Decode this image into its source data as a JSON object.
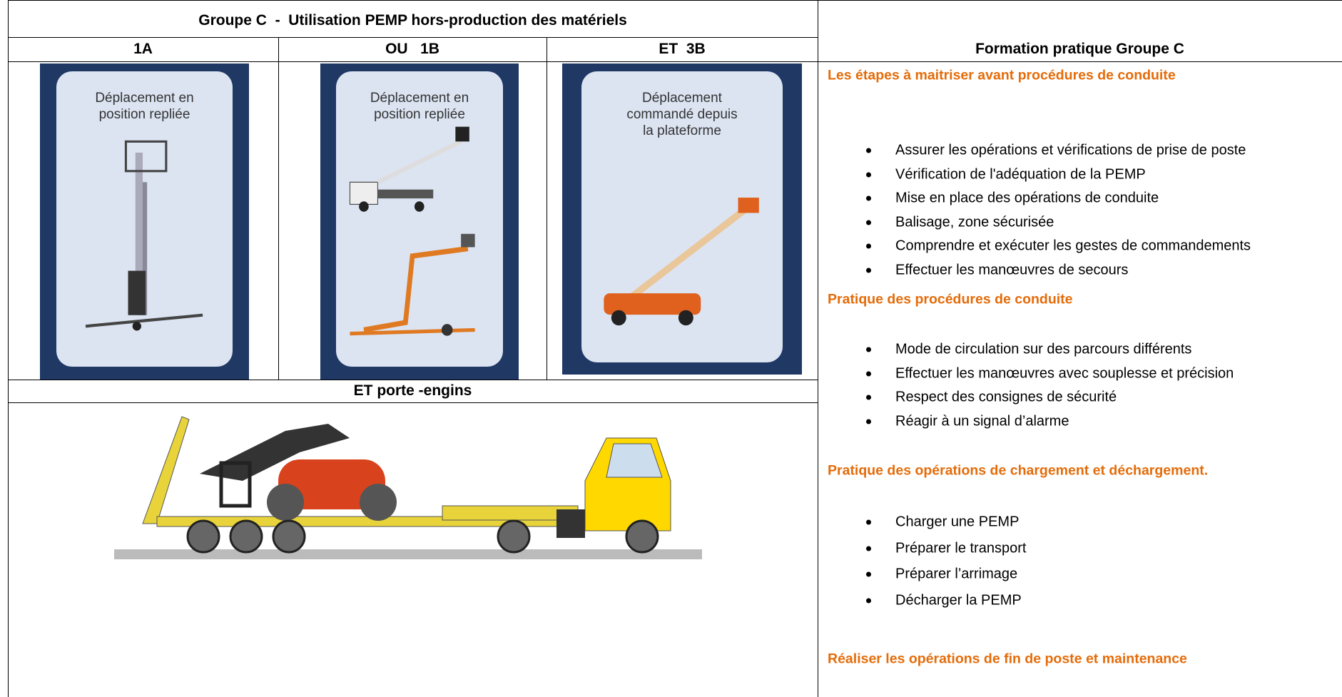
{
  "table": {
    "title": "Groupe C  -  Utilisation PEMP hors-production des matériels",
    "columns": [
      "1A",
      "OU   1B",
      "ET  3B"
    ],
    "images": [
      {
        "caption": [
          "Déplacement en",
          "position repliée"
        ]
      },
      {
        "caption": [
          "Déplacement en",
          "position repliée"
        ]
      },
      {
        "caption": [
          "Déplacement",
          "commandé depuis",
          "la plateforme"
        ]
      }
    ],
    "transport_title": "ET porte -engins"
  },
  "training": {
    "title": "Formation pratique Groupe C",
    "sections": [
      {
        "heading": "Les  étapes à maitriser avant procédures de conduite",
        "items": [
          "Assurer les opérations et vérifications de prise de poste",
          "Vérification de l'adéquation de la PEMP",
          "Mise en place des opérations de conduite",
          "Balisage, zone sécurisée",
          "Comprendre et exécuter les gestes de commandements",
          "Effectuer les manœuvres de secours"
        ]
      },
      {
        "heading": "Pratique des procédures de conduite",
        "items": [
          "Mode de circulation sur des parcours différents",
          "Effectuer les manœuvres avec souplesse et précision",
          "Respect des consignes de sécurité",
          "Réagir à un signal d’alarme"
        ]
      },
      {
        "heading": "Pratique des opérations de chargement et déchargement.",
        "items": [
          "Charger une PEMP",
          "Préparer le transport",
          "Préparer l’arrimage",
          "Décharger la PEMP"
        ]
      },
      {
        "heading": "Réaliser les opérations de fin de poste et maintenance",
        "items": []
      }
    ]
  }
}
